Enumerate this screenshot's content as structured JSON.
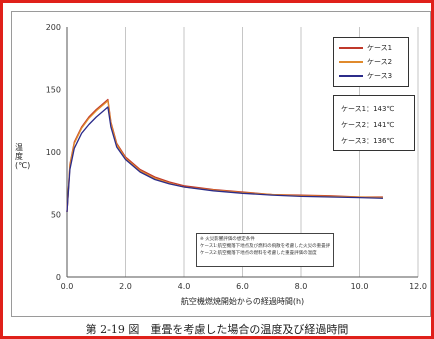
{
  "caption": "第 2-19 図　重畳を考慮した場合の温度及び経過時間",
  "chart_data": {
    "type": "line",
    "title": "",
    "xlabel": "航空機燃焼開始からの経過時間(h)",
    "ylabel": "温度(℃)",
    "xlim": [
      0,
      12
    ],
    "ylim": [
      0,
      200
    ],
    "xticks": [
      "0.0",
      "2.0",
      "4.0",
      "6.0",
      "8.0",
      "10.0",
      "12.0"
    ],
    "yticks": [
      "0",
      "50",
      "100",
      "150",
      "200"
    ],
    "grid": "vertical",
    "legend_position": "top-right",
    "series": [
      {
        "name": "ケース1",
        "color": "#c0392b",
        "x": [
          0,
          0.1,
          0.25,
          0.5,
          0.75,
          1.0,
          1.25,
          1.4,
          1.5,
          1.7,
          2.0,
          2.5,
          3.0,
          3.5,
          4.0,
          5.0,
          6.0,
          7.0,
          8.0,
          9.0,
          10.0,
          10.8
        ],
        "y": [
          52,
          90,
          108,
          120,
          128,
          134,
          139,
          142,
          124,
          107,
          96,
          86,
          80,
          76,
          73,
          70,
          68,
          66,
          65.5,
          65,
          64,
          64
        ]
      },
      {
        "name": "ケース2",
        "color": "#e08a2c",
        "x": [
          0,
          0.1,
          0.25,
          0.5,
          0.75,
          1.0,
          1.25,
          1.4,
          1.5,
          1.7,
          2.0,
          2.5,
          3.0,
          3.5,
          4.0,
          5.0,
          6.0,
          7.0,
          8.0,
          9.0,
          10.0,
          10.8
        ],
        "y": [
          52,
          89,
          107,
          119,
          127,
          133,
          138,
          141,
          123,
          106,
          95,
          85,
          79,
          75,
          72,
          69.5,
          67.5,
          66,
          65,
          64.5,
          64,
          63.5
        ]
      },
      {
        "name": "ケース3",
        "color": "#2c2c8a",
        "x": [
          0,
          0.1,
          0.25,
          0.5,
          0.75,
          1.0,
          1.25,
          1.4,
          1.5,
          1.7,
          2.0,
          2.5,
          3.0,
          3.5,
          4.0,
          5.0,
          6.0,
          7.0,
          8.0,
          9.0,
          10.0,
          10.8
        ],
        "y": [
          52,
          86,
          103,
          115,
          122,
          128,
          133,
          136,
          120,
          104,
          94,
          84,
          78,
          74.5,
          72,
          69,
          67,
          65.5,
          64.5,
          64,
          63.5,
          63
        ]
      }
    ],
    "max_temperatures": [
      "ケース1：143℃",
      "ケース2：141℃",
      "ケース3：136℃"
    ],
    "notes": [
      "※ 火災影響評価の想定条件",
      "ケース1:航空機落下地点及び燃料の飛散を考慮した火災の重畳評価",
      "ケース2:航空機落下地点の燃料を考慮した重畳評価の温度"
    ]
  }
}
